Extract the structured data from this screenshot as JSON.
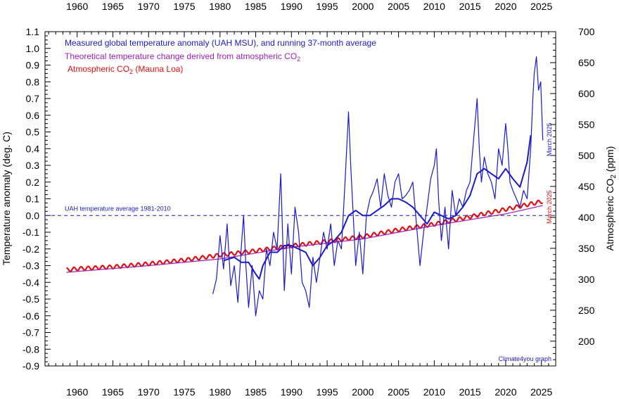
{
  "chart_data": {
    "type": "line",
    "legend": {
      "position": "top-left",
      "entries": [
        {
          "text": "Measured global temperature anomaly (UAH MSU), and running 37-month average",
          "color": "#1a1acd"
        },
        {
          "text_main": "Theoretical temperature change derived from atmospheric CO",
          "text_sub": "2",
          "color": "#a020c0"
        },
        {
          "text_main": "Atmospheric CO",
          "text_sub": "2",
          "text_tail": " (Mauna Loa)",
          "color": "#e01010"
        }
      ]
    },
    "ylabel_left": "Temperature anomaly (deg. C)",
    "ylabel_right_main": "Atmospheric CO",
    "ylabel_right_sub": "2",
    "ylabel_right_tail": " (ppm)",
    "xlim": [
      1955.5,
      1958.0
    ],
    "xlim_full": [
      1955.5,
      2027
    ],
    "ylim_left": [
      -0.9,
      1.1
    ],
    "ylim_right": [
      160,
      700
    ],
    "x_ticks": [
      "1960",
      "1965",
      "1970",
      "1975",
      "1980",
      "1985",
      "1990",
      "1995",
      "2000",
      "2005",
      "2010",
      "2015",
      "2020",
      "2025"
    ],
    "y_left_ticks": [
      "-0.9",
      "-0.8",
      "-0.7",
      "-0.6",
      "-0.5",
      "-0.4",
      "-0.3",
      "-0.2",
      "-0.1",
      "0.0",
      "0.1",
      "0.2",
      "0.3",
      "0.4",
      "0.5",
      "0.6",
      "0.7",
      "0.8",
      "0.9",
      "1.0",
      "1.1"
    ],
    "y_right_ticks": [
      "200",
      "250",
      "300",
      "350",
      "400",
      "450",
      "500",
      "550",
      "600",
      "650",
      "700"
    ],
    "reference_line": {
      "label": "UAH temperature average 1981-2010",
      "value": 0.0
    },
    "annotations": {
      "temp_end": "March 2025",
      "co2_end": "March 2025",
      "credit": "Climate4you graph"
    },
    "series": [
      {
        "name": "Measured global temperature anomaly (UAH MSU)",
        "color": "#1a1acd",
        "x": [
          1979.0,
          1979.5,
          1980.0,
          1980.5,
          1981.0,
          1981.5,
          1982.0,
          1982.5,
          1983.0,
          1983.3,
          1983.6,
          1984.0,
          1984.5,
          1985.0,
          1985.5,
          1986.0,
          1986.5,
          1987.0,
          1987.5,
          1988.0,
          1988.5,
          1989.0,
          1989.5,
          1990.0,
          1990.5,
          1991.0,
          1991.5,
          1992.0,
          1992.5,
          1993.0,
          1993.5,
          1994.0,
          1994.5,
          1995.0,
          1995.5,
          1996.0,
          1996.5,
          1997.0,
          1997.5,
          1998.0,
          1998.3,
          1998.6,
          1999.0,
          1999.5,
          2000.0,
          2000.5,
          2001.0,
          2001.5,
          2002.0,
          2002.5,
          2003.0,
          2003.5,
          2004.0,
          2004.5,
          2005.0,
          2005.5,
          2006.0,
          2006.5,
          2007.0,
          2007.5,
          2008.0,
          2008.5,
          2009.0,
          2009.5,
          2010.0,
          2010.3,
          2010.6,
          2011.0,
          2011.5,
          2012.0,
          2012.5,
          2013.0,
          2013.5,
          2014.0,
          2014.5,
          2015.0,
          2015.5,
          2016.0,
          2016.3,
          2016.6,
          2017.0,
          2017.5,
          2018.0,
          2018.5,
          2019.0,
          2019.5,
          2020.0,
          2020.3,
          2020.6,
          2021.0,
          2021.5,
          2022.0,
          2022.5,
          2023.0,
          2023.5,
          2023.8,
          2024.0,
          2024.3,
          2024.6,
          2024.9,
          2025.2
        ],
        "values": [
          -0.47,
          -0.38,
          -0.12,
          -0.32,
          -0.05,
          -0.42,
          -0.3,
          -0.52,
          -0.18,
          0.0,
          -0.28,
          -0.55,
          -0.3,
          -0.6,
          -0.45,
          -0.5,
          -0.2,
          -0.3,
          -0.1,
          -0.2,
          0.25,
          -0.45,
          -0.05,
          -0.35,
          0.05,
          -0.1,
          -0.4,
          -0.45,
          -0.55,
          -0.25,
          -0.4,
          -0.25,
          -0.1,
          -0.2,
          -0.05,
          -0.3,
          -0.15,
          -0.2,
          0.2,
          0.62,
          0.3,
          0.05,
          -0.3,
          -0.1,
          -0.35,
          0.0,
          0.1,
          0.15,
          0.22,
          0.05,
          0.25,
          0.12,
          0.05,
          0.2,
          0.25,
          0.1,
          0.12,
          0.15,
          0.2,
          -0.05,
          -0.3,
          -0.1,
          0.05,
          0.22,
          0.3,
          0.4,
          0.1,
          -0.15,
          0.05,
          -0.2,
          0.15,
          0.0,
          0.1,
          0.05,
          0.15,
          0.2,
          0.45,
          0.7,
          0.4,
          0.2,
          0.35,
          0.25,
          0.2,
          0.1,
          0.4,
          0.3,
          0.55,
          0.4,
          0.2,
          0.15,
          0.1,
          0.05,
          0.15,
          0.1,
          0.4,
          0.7,
          0.85,
          0.95,
          0.75,
          0.8,
          0.45
        ]
      },
      {
        "name": "Running 37-month average",
        "color": "#1a1acd",
        "x": [
          1980.5,
          1982.0,
          1983.0,
          1984.0,
          1985.0,
          1985.5,
          1986.0,
          1987.0,
          1988.0,
          1989.0,
          1990.0,
          1991.0,
          1992.0,
          1993.0,
          1994.0,
          1995.0,
          1996.0,
          1997.0,
          1998.0,
          1999.0,
          2000.0,
          2001.0,
          2002.0,
          2003.0,
          2004.0,
          2005.0,
          2006.0,
          2007.0,
          2008.0,
          2009.0,
          2010.0,
          2011.0,
          2012.0,
          2013.0,
          2014.0,
          2015.0,
          2016.0,
          2017.0,
          2018.0,
          2019.0,
          2020.0,
          2021.0,
          2022.0,
          2023.0,
          2023.5
        ],
        "values": [
          -0.27,
          -0.25,
          -0.28,
          -0.28,
          -0.35,
          -0.38,
          -0.3,
          -0.22,
          -0.22,
          -0.18,
          -0.18,
          -0.2,
          -0.22,
          -0.3,
          -0.25,
          -0.18,
          -0.15,
          -0.1,
          0.0,
          0.03,
          0.0,
          0.0,
          0.03,
          0.06,
          0.1,
          0.1,
          0.08,
          0.05,
          0.0,
          -0.05,
          0.02,
          0.0,
          -0.02,
          0.0,
          0.05,
          0.12,
          0.25,
          0.28,
          0.25,
          0.22,
          0.28,
          0.22,
          0.17,
          0.32,
          0.48
        ]
      },
      {
        "name": "Theoretical temperature change derived from atmospheric CO2",
        "color": "#a020c0",
        "x": [
          1958.5,
          1970,
          1980,
          1990,
          2000,
          2010,
          2020,
          2025.2
        ],
        "values": [
          -0.34,
          -0.3,
          -0.26,
          -0.19,
          -0.14,
          -0.06,
          0.01,
          0.06
        ]
      },
      {
        "name": "Atmospheric CO2 (Mauna Loa)",
        "color": "#e01010",
        "axis": "right",
        "x": [
          1958.5,
          1960,
          1965,
          1970,
          1975,
          1980,
          1985,
          1990,
          1995,
          2000,
          2005,
          2010,
          2015,
          2020,
          2025.2
        ],
        "values": [
          315,
          317,
          320,
          325,
          331,
          339,
          346,
          354,
          361,
          369,
          380,
          389,
          401,
          413,
          426
        ]
      }
    ]
  }
}
